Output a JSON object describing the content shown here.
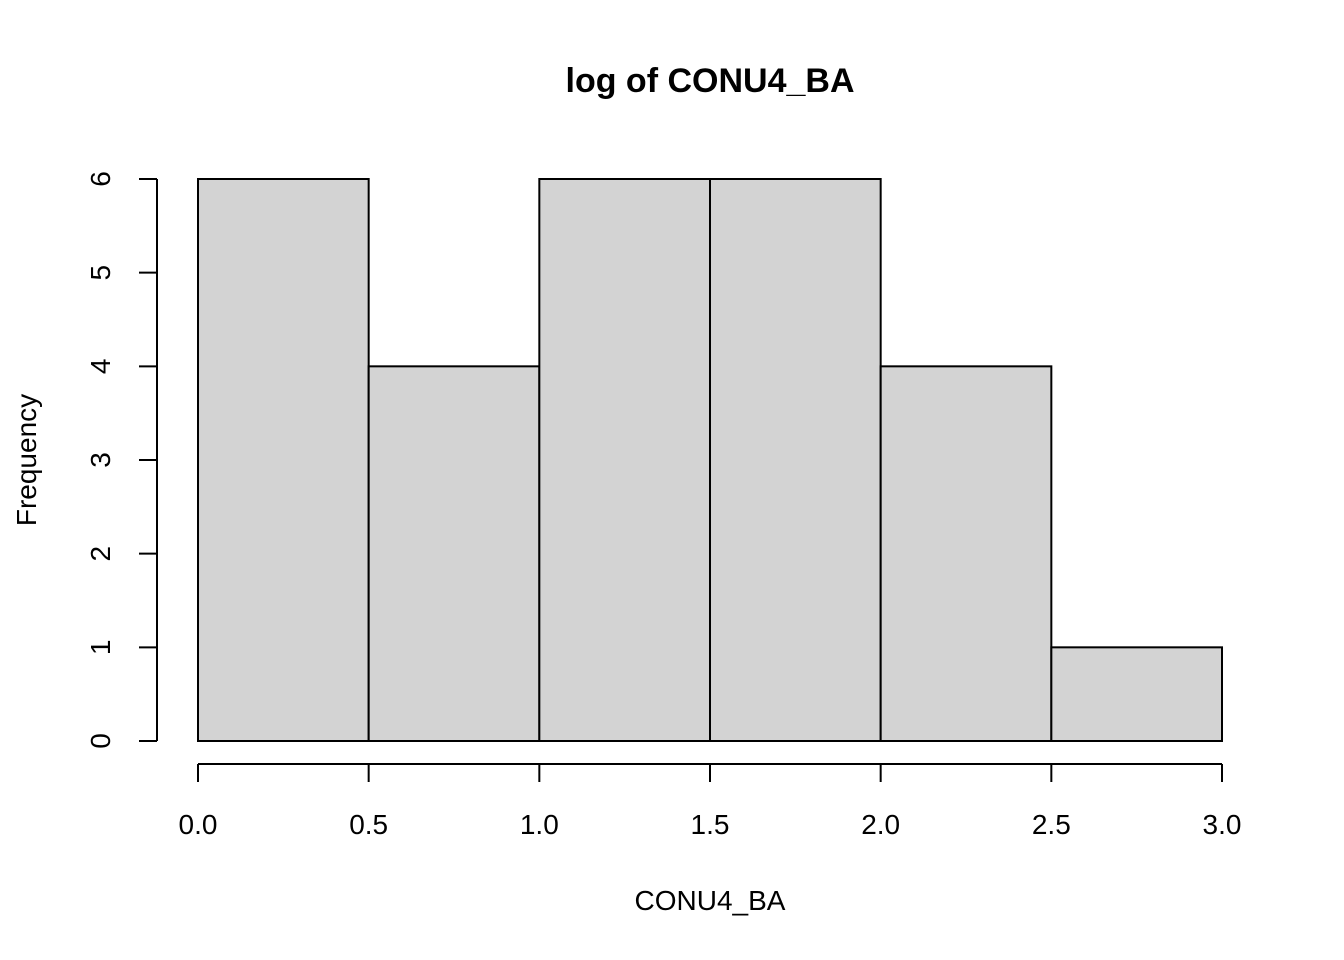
{
  "chart_data": {
    "type": "bar",
    "title": "log of CONU4_BA",
    "xlabel": "CONU4_BA",
    "ylabel": "Frequency",
    "bins": [
      {
        "start": 0.0,
        "end": 0.5,
        "value": 6
      },
      {
        "start": 0.5,
        "end": 1.0,
        "value": 4
      },
      {
        "start": 1.0,
        "end": 1.5,
        "value": 6
      },
      {
        "start": 1.5,
        "end": 2.0,
        "value": 6
      },
      {
        "start": 2.0,
        "end": 2.5,
        "value": 4
      },
      {
        "start": 2.5,
        "end": 3.0,
        "value": 1
      }
    ],
    "xlim": [
      0,
      3
    ],
    "ylim": [
      0,
      6
    ],
    "x_ticks": [
      "0.0",
      "0.5",
      "1.0",
      "1.5",
      "2.0",
      "2.5",
      "3.0"
    ],
    "y_ticks": [
      "0",
      "1",
      "2",
      "3",
      "4",
      "5",
      "6"
    ],
    "bar_fill": "#d3d3d3",
    "bar_stroke": "#000000",
    "grid": false
  }
}
